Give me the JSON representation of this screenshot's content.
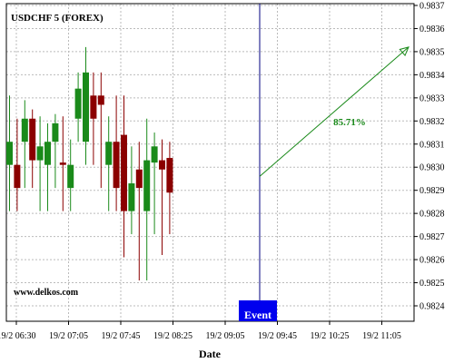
{
  "chart_data": {
    "type": "candlestick",
    "title": "USDCHF 5 (FOREX)",
    "xlabel": "Date",
    "ylabel": "",
    "ylim": [
      0.98235,
      0.98375
    ],
    "yticks": [
      "0.9824",
      "0.9825",
      "0.9826",
      "0.9827",
      "0.9828",
      "0.9829",
      "0.9830",
      "0.9831",
      "0.9832",
      "0.9833",
      "0.9834",
      "0.9835",
      "0.9836",
      "0.9837"
    ],
    "xtick_labels": [
      "19/2 06:30",
      "19/2 07:05",
      "19/2 07:45",
      "19/2 08:25",
      "19/2 09:05",
      "19/2 09:45",
      "19/2 10:25",
      "19/2 11:05"
    ],
    "grid": true,
    "candles": [
      {
        "open": 0.98301,
        "high": 0.98331,
        "low": 0.98281,
        "close": 0.98311
      },
      {
        "open": 0.98301,
        "high": 0.98321,
        "low": 0.98281,
        "close": 0.98291
      },
      {
        "open": 0.98311,
        "high": 0.98329,
        "low": 0.98291,
        "close": 0.98321
      },
      {
        "open": 0.98321,
        "high": 0.98325,
        "low": 0.98291,
        "close": 0.98303
      },
      {
        "open": 0.98303,
        "high": 0.98322,
        "low": 0.98281,
        "close": 0.98309
      },
      {
        "open": 0.98301,
        "high": 0.98319,
        "low": 0.98281,
        "close": 0.98311
      },
      {
        "open": 0.98311,
        "high": 0.98323,
        "low": 0.98291,
        "close": 0.98319
      },
      {
        "open": 0.98302,
        "high": 0.98322,
        "low": 0.98281,
        "close": 0.98301
      },
      {
        "open": 0.98291,
        "high": 0.98312,
        "low": 0.98281,
        "close": 0.98301
      },
      {
        "open": 0.98321,
        "high": 0.98341,
        "low": 0.98311,
        "close": 0.98334
      },
      {
        "open": 0.98311,
        "high": 0.98352,
        "low": 0.98301,
        "close": 0.98341
      },
      {
        "open": 0.98331,
        "high": 0.98341,
        "low": 0.98301,
        "close": 0.98321
      },
      {
        "open": 0.98331,
        "high": 0.98341,
        "low": 0.98291,
        "close": 0.98327
      },
      {
        "open": 0.98301,
        "high": 0.98322,
        "low": 0.98281,
        "close": 0.98311
      },
      {
        "open": 0.98311,
        "high": 0.98331,
        "low": 0.98281,
        "close": 0.98291
      },
      {
        "open": 0.98314,
        "high": 0.98331,
        "low": 0.98261,
        "close": 0.98281
      },
      {
        "open": 0.98281,
        "high": 0.98309,
        "low": 0.98271,
        "close": 0.98293
      },
      {
        "open": 0.98299,
        "high": 0.98311,
        "low": 0.98251,
        "close": 0.98291
      },
      {
        "open": 0.98281,
        "high": 0.98321,
        "low": 0.98251,
        "close": 0.98303
      },
      {
        "open": 0.98302,
        "high": 0.98315,
        "low": 0.98271,
        "close": 0.98309
      },
      {
        "open": 0.98303,
        "high": 0.98312,
        "low": 0.98262,
        "close": 0.98299
      },
      {
        "open": 0.98304,
        "high": 0.98311,
        "low": 0.98271,
        "close": 0.98289
      }
    ],
    "up_color": "#1a8a1a",
    "down_color": "#8b0000",
    "event": {
      "label": "Event",
      "line_color": "#000080",
      "box_color": "#0000ee"
    },
    "projection": {
      "label": "85.71%",
      "color": "#1a8a1a",
      "from_y": 0.98296,
      "to_y": 0.98352
    },
    "credit": "www.delkos.com"
  }
}
